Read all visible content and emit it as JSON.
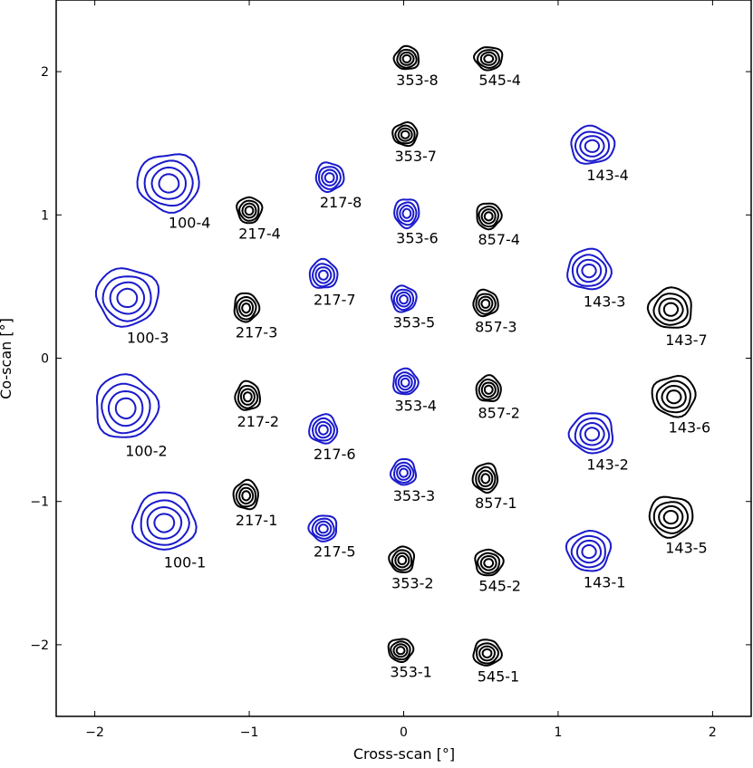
{
  "chart_data": {
    "type": "contour",
    "xlabel": "Cross-scan [°]",
    "ylabel": "Co-scan [°]",
    "xlim": [
      -2.25,
      2.25
    ],
    "ylim": [
      -2.5,
      2.5
    ],
    "xticks": [
      {
        "value": -2,
        "label": "−2"
      },
      {
        "value": -1,
        "label": "−1"
      },
      {
        "value": 0,
        "label": "0"
      },
      {
        "value": 1,
        "label": "1"
      },
      {
        "value": 2,
        "label": "2"
      }
    ],
    "yticks": [
      {
        "value": -2,
        "label": "−2"
      },
      {
        "value": -1,
        "label": "−1"
      },
      {
        "value": 0,
        "label": "0"
      },
      {
        "value": 1,
        "label": "1"
      },
      {
        "value": 2,
        "label": "2"
      }
    ],
    "colors": {
      "blue": "#1a1acc",
      "black": "#000000"
    },
    "detectors": [
      {
        "label": "100-1",
        "x": -1.55,
        "y": -1.15,
        "w": 0.2,
        "h": 0.2,
        "color": "blue"
      },
      {
        "label": "100-2",
        "x": -1.8,
        "y": -0.35,
        "w": 0.2,
        "h": 0.22,
        "color": "blue"
      },
      {
        "label": "100-3",
        "x": -1.79,
        "y": 0.42,
        "w": 0.2,
        "h": 0.2,
        "color": "blue"
      },
      {
        "label": "100-4",
        "x": -1.52,
        "y": 1.22,
        "w": 0.2,
        "h": 0.2,
        "color": "blue"
      },
      {
        "label": "217-1",
        "x": -1.02,
        "y": -0.96,
        "w": 0.08,
        "h": 0.1,
        "color": "black"
      },
      {
        "label": "217-2",
        "x": -1.01,
        "y": -0.27,
        "w": 0.08,
        "h": 0.1,
        "color": "black"
      },
      {
        "label": "217-3",
        "x": -1.02,
        "y": 0.35,
        "w": 0.08,
        "h": 0.1,
        "color": "black"
      },
      {
        "label": "217-4",
        "x": -1.0,
        "y": 1.03,
        "w": 0.08,
        "h": 0.09,
        "color": "black"
      },
      {
        "label": "217-5",
        "x": -0.52,
        "y": -1.19,
        "w": 0.09,
        "h": 0.09,
        "color": "blue"
      },
      {
        "label": "217-6",
        "x": -0.52,
        "y": -0.5,
        "w": 0.09,
        "h": 0.1,
        "color": "blue"
      },
      {
        "label": "217-7",
        "x": -0.52,
        "y": 0.58,
        "w": 0.09,
        "h": 0.1,
        "color": "blue"
      },
      {
        "label": "217-8",
        "x": -0.48,
        "y": 1.26,
        "w": 0.09,
        "h": 0.1,
        "color": "blue"
      },
      {
        "label": "353-1",
        "x": -0.02,
        "y": -2.04,
        "w": 0.08,
        "h": 0.08,
        "color": "black"
      },
      {
        "label": "353-2",
        "x": -0.01,
        "y": -1.41,
        "w": 0.08,
        "h": 0.09,
        "color": "black"
      },
      {
        "label": "353-3",
        "x": 0.0,
        "y": -0.8,
        "w": 0.08,
        "h": 0.09,
        "color": "blue"
      },
      {
        "label": "353-4",
        "x": 0.01,
        "y": -0.17,
        "w": 0.08,
        "h": 0.09,
        "color": "blue"
      },
      {
        "label": "353-5",
        "x": 0.0,
        "y": 0.41,
        "w": 0.08,
        "h": 0.09,
        "color": "blue"
      },
      {
        "label": "353-6",
        "x": 0.02,
        "y": 1.01,
        "w": 0.08,
        "h": 0.1,
        "color": "blue"
      },
      {
        "label": "353-7",
        "x": 0.01,
        "y": 1.56,
        "w": 0.08,
        "h": 0.08,
        "color": "black"
      },
      {
        "label": "353-8",
        "x": 0.02,
        "y": 2.09,
        "w": 0.08,
        "h": 0.08,
        "color": "black"
      },
      {
        "label": "545-1",
        "x": 0.54,
        "y": -2.06,
        "w": 0.09,
        "h": 0.09,
        "color": "black"
      },
      {
        "label": "545-2",
        "x": 0.55,
        "y": -1.43,
        "w": 0.09,
        "h": 0.09,
        "color": "black"
      },
      {
        "label": "545-4",
        "x": 0.55,
        "y": 2.09,
        "w": 0.09,
        "h": 0.08,
        "color": "black"
      },
      {
        "label": "857-1",
        "x": 0.53,
        "y": -0.84,
        "w": 0.08,
        "h": 0.1,
        "color": "black"
      },
      {
        "label": "857-2",
        "x": 0.55,
        "y": -0.22,
        "w": 0.08,
        "h": 0.09,
        "color": "black"
      },
      {
        "label": "857-3",
        "x": 0.53,
        "y": 0.38,
        "w": 0.08,
        "h": 0.09,
        "color": "black"
      },
      {
        "label": "857-4",
        "x": 0.55,
        "y": 0.99,
        "w": 0.08,
        "h": 0.09,
        "color": "black"
      },
      {
        "label": "143-1",
        "x": 1.2,
        "y": -1.35,
        "w": 0.14,
        "h": 0.14,
        "color": "blue"
      },
      {
        "label": "143-2",
        "x": 1.22,
        "y": -0.53,
        "w": 0.14,
        "h": 0.14,
        "color": "blue"
      },
      {
        "label": "143-3",
        "x": 1.2,
        "y": 0.61,
        "w": 0.14,
        "h": 0.14,
        "color": "blue"
      },
      {
        "label": "143-4",
        "x": 1.22,
        "y": 1.48,
        "w": 0.14,
        "h": 0.13,
        "color": "blue"
      },
      {
        "label": "143-5",
        "x": 1.73,
        "y": -1.11,
        "w": 0.14,
        "h": 0.14,
        "color": "black"
      },
      {
        "label": "143-6",
        "x": 1.75,
        "y": -0.27,
        "w": 0.14,
        "h": 0.14,
        "color": "black"
      },
      {
        "label": "143-7",
        "x": 1.73,
        "y": 0.34,
        "w": 0.14,
        "h": 0.14,
        "color": "black"
      }
    ]
  }
}
